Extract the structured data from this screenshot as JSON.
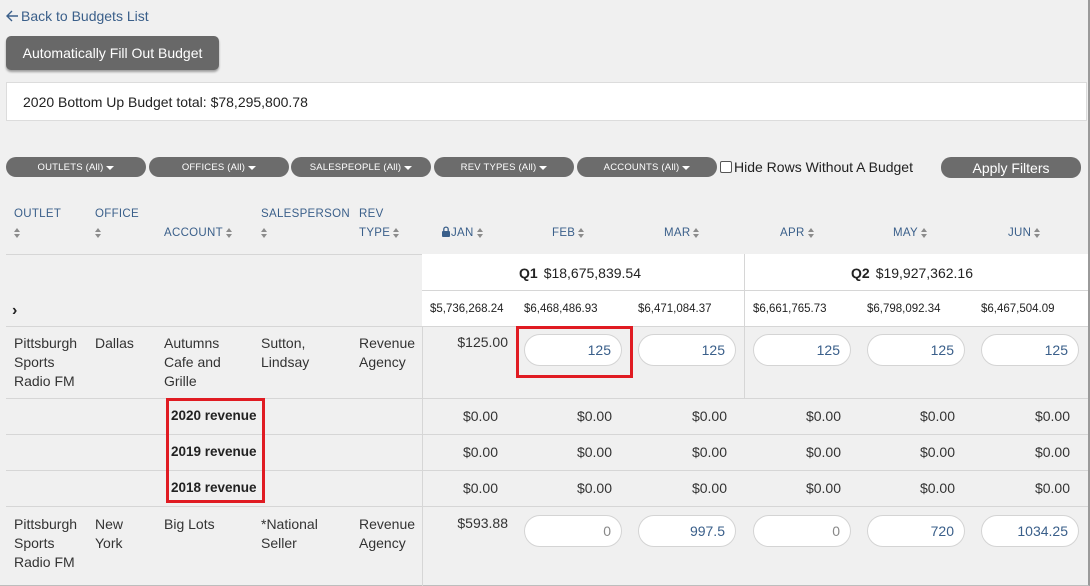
{
  "nav": {
    "back_label": "Back to Budgets List"
  },
  "actions": {
    "auto_fill_label": "Automatically Fill Out Budget"
  },
  "summary": {
    "total_text": "2020 Bottom Up Budget total: $78,295,800.78"
  },
  "filters": {
    "outlets": "OUTLETS (All)",
    "offices": "OFFICES (All)",
    "salespeople": "SALESPEOPLE (All)",
    "rev_types": "REV TYPES (All)",
    "accounts": "ACCOUNTS (All)",
    "hide_rows_label": "Hide Rows Without A Budget",
    "hide_rows_checked": false,
    "apply_label": "Apply Filters"
  },
  "columns": {
    "outlet": "OUTLET",
    "office": "OFFICE",
    "account": "ACCOUNT",
    "salesperson": "SALESPERSON",
    "rev_type_1": "REV",
    "rev_type_2": "TYPE",
    "months": [
      "JAN",
      "FEB",
      "MAR",
      "APR",
      "MAY",
      "JUN"
    ]
  },
  "quarters": [
    {
      "label": "Q1",
      "total": "$18,675,839.54"
    },
    {
      "label": "Q2",
      "total": "$19,927,362.16"
    }
  ],
  "month_totals": [
    "$5,736,268.24",
    "$6,468,486.93",
    "$6,471,084.37",
    "$6,661,765.73",
    "$6,798,092.34",
    "$6,467,504.09"
  ],
  "rows": [
    {
      "outlet": [
        "Pittsburgh",
        "Sports",
        "Radio FM"
      ],
      "office": [
        "Dallas"
      ],
      "account": [
        "Autumns",
        "Cafe and",
        "Grille"
      ],
      "salesperson": [
        "Sutton,",
        "Lindsay"
      ],
      "rev_type": [
        "Revenue",
        "Agency"
      ],
      "jan": "$125.00",
      "inputs": [
        "125",
        "125",
        "125",
        "125",
        "125"
      ]
    },
    {
      "outlet": [
        "Pittsburgh",
        "Sports",
        "Radio FM"
      ],
      "office": [
        "New",
        "York"
      ],
      "account": [
        "Big Lots"
      ],
      "salesperson": [
        "*National",
        "Seller"
      ],
      "rev_type": [
        "Revenue",
        "Agency"
      ],
      "jan": "$593.88",
      "inputs": [
        "0",
        "997.5",
        "0",
        "720",
        "1034.25"
      ]
    }
  ],
  "revenue_rows": [
    {
      "label": "2020 revenue",
      "values": [
        "$0.00",
        "$0.00",
        "$0.00",
        "$0.00",
        "$0.00",
        "$0.00"
      ]
    },
    {
      "label": "2019 revenue",
      "values": [
        "$0.00",
        "$0.00",
        "$0.00",
        "$0.00",
        "$0.00",
        "$0.00"
      ]
    },
    {
      "label": "2018 revenue",
      "values": [
        "$0.00",
        "$0.00",
        "$0.00",
        "$0.00",
        "$0.00",
        "$0.00"
      ]
    }
  ],
  "colors": {
    "link": "#3a5f8a",
    "button": "#6c6c6c",
    "highlight": "#e01b22"
  }
}
